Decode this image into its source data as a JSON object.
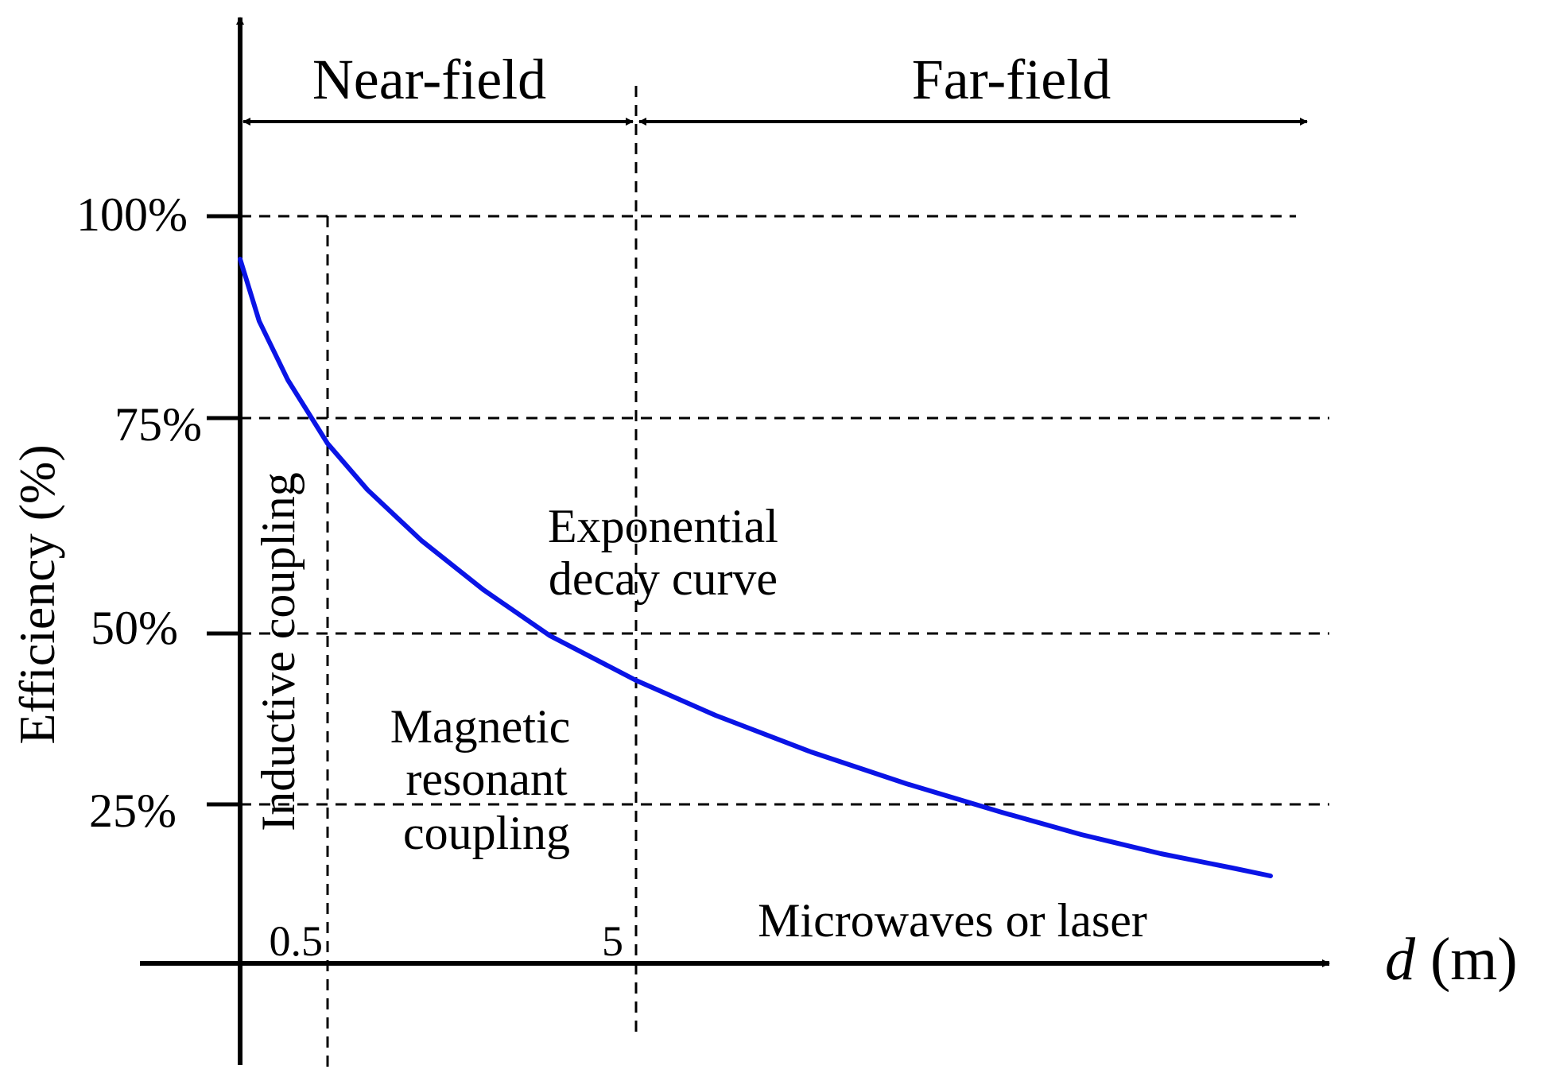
{
  "yaxis": {
    "label": "Efficiency (%)",
    "ticks": [
      "100%",
      "75%",
      "50%",
      "25%"
    ]
  },
  "xaxis": {
    "label_var": "d",
    "label_unit": " (m)",
    "ticks": [
      "0.5",
      "5"
    ]
  },
  "regions": {
    "near_field": "Near-field",
    "far_field": "Far-field",
    "inductive": "Inductive coupling",
    "magnetic_line1": "Magnetic",
    "magnetic_line2": "resonant",
    "magnetic_line3": "coupling",
    "microwaves": "Microwaves or laser"
  },
  "curve": {
    "label_line1": "Exponential",
    "label_line2": "decay curve",
    "color": "#0a14e6"
  }
}
